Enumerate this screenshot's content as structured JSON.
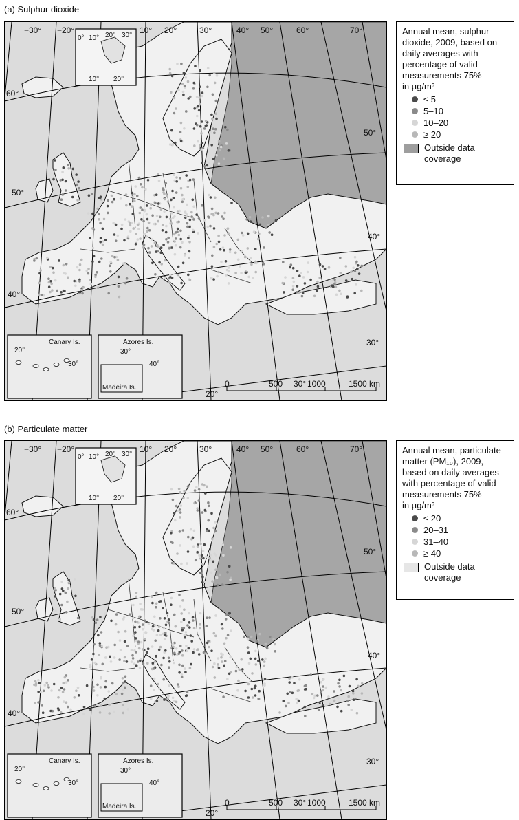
{
  "panels": [
    {
      "title": "(a) Sulphur dioxide",
      "legend": {
        "title_line1": "Annual mean, sulphur",
        "title_line2": "dioxide, 2009, based on",
        "title_line3": "daily averages with",
        "title_line4": "percentage of valid",
        "title_line5": "measurements 75%",
        "unit": "in µg/m³",
        "classes": [
          {
            "label": "≤ 5",
            "color": "#4a4a4a"
          },
          {
            "label": "5–10",
            "color": "#8a8a8a"
          },
          {
            "label": "10–20",
            "color": "#d6d6d6"
          },
          {
            "label": "≥ 20",
            "color": "#b8b8b8"
          }
        ],
        "outside_label_1": "Outside data",
        "outside_label_2": "coverage",
        "outside_color": "#9e9e9e"
      },
      "outside_color": "#a6a6a6"
    },
    {
      "title": "(b) Particulate matter",
      "legend": {
        "title_line1": "Annual mean, particulate",
        "title_line2": "matter (PM₁₀), 2009,",
        "title_line3": "based on daily averages",
        "title_line4": "with percentage of valid",
        "title_line5": "measurements 75%",
        "unit": "in µg/m³",
        "classes": [
          {
            "label": "≤ 20",
            "color": "#4a4a4a"
          },
          {
            "label": "20–31",
            "color": "#8a8a8a"
          },
          {
            "label": "31–40",
            "color": "#d6d6d6"
          },
          {
            "label": "≥ 40",
            "color": "#b8b8b8"
          }
        ],
        "outside_label_1": "Outside data",
        "outside_label_2": "coverage",
        "outside_color": "#e6e6e6"
      },
      "outside_color": "#a6a6a6"
    }
  ],
  "map_labels": {
    "lon_m30": "−30°",
    "lon_m20": "−20°",
    "lon_10": "10°",
    "lon_20": "20°",
    "lon_30": "30°",
    "lon_40": "40°",
    "lon_50": "50°",
    "lon_60": "60°",
    "lon_70": "70°",
    "lat_60": "60°",
    "lat_50": "50°",
    "lat_40": "40°",
    "lat_30": "30°",
    "lat_50r": "50°",
    "lat_40r": "40°",
    "inset_svalbard_0": "0°",
    "inset_svalbard_10": "10°",
    "inset_svalbard_20": "20°",
    "inset_svalbard_30": "30°",
    "inset_svalbard_b10": "10°",
    "inset_svalbard_b20": "20°",
    "canary": "Canary Is.",
    "canary_20": "20°",
    "canary_30": "30°",
    "azores": "Azores Is.",
    "azores_30": "30°",
    "azores_40": "40°",
    "madeira": "Madeira Is.",
    "bottom_20": "20°",
    "bottom_30": "30°",
    "scale_0": "0",
    "scale_500": "500",
    "scale_1000": "1000",
    "scale_1500": "1500 km"
  }
}
